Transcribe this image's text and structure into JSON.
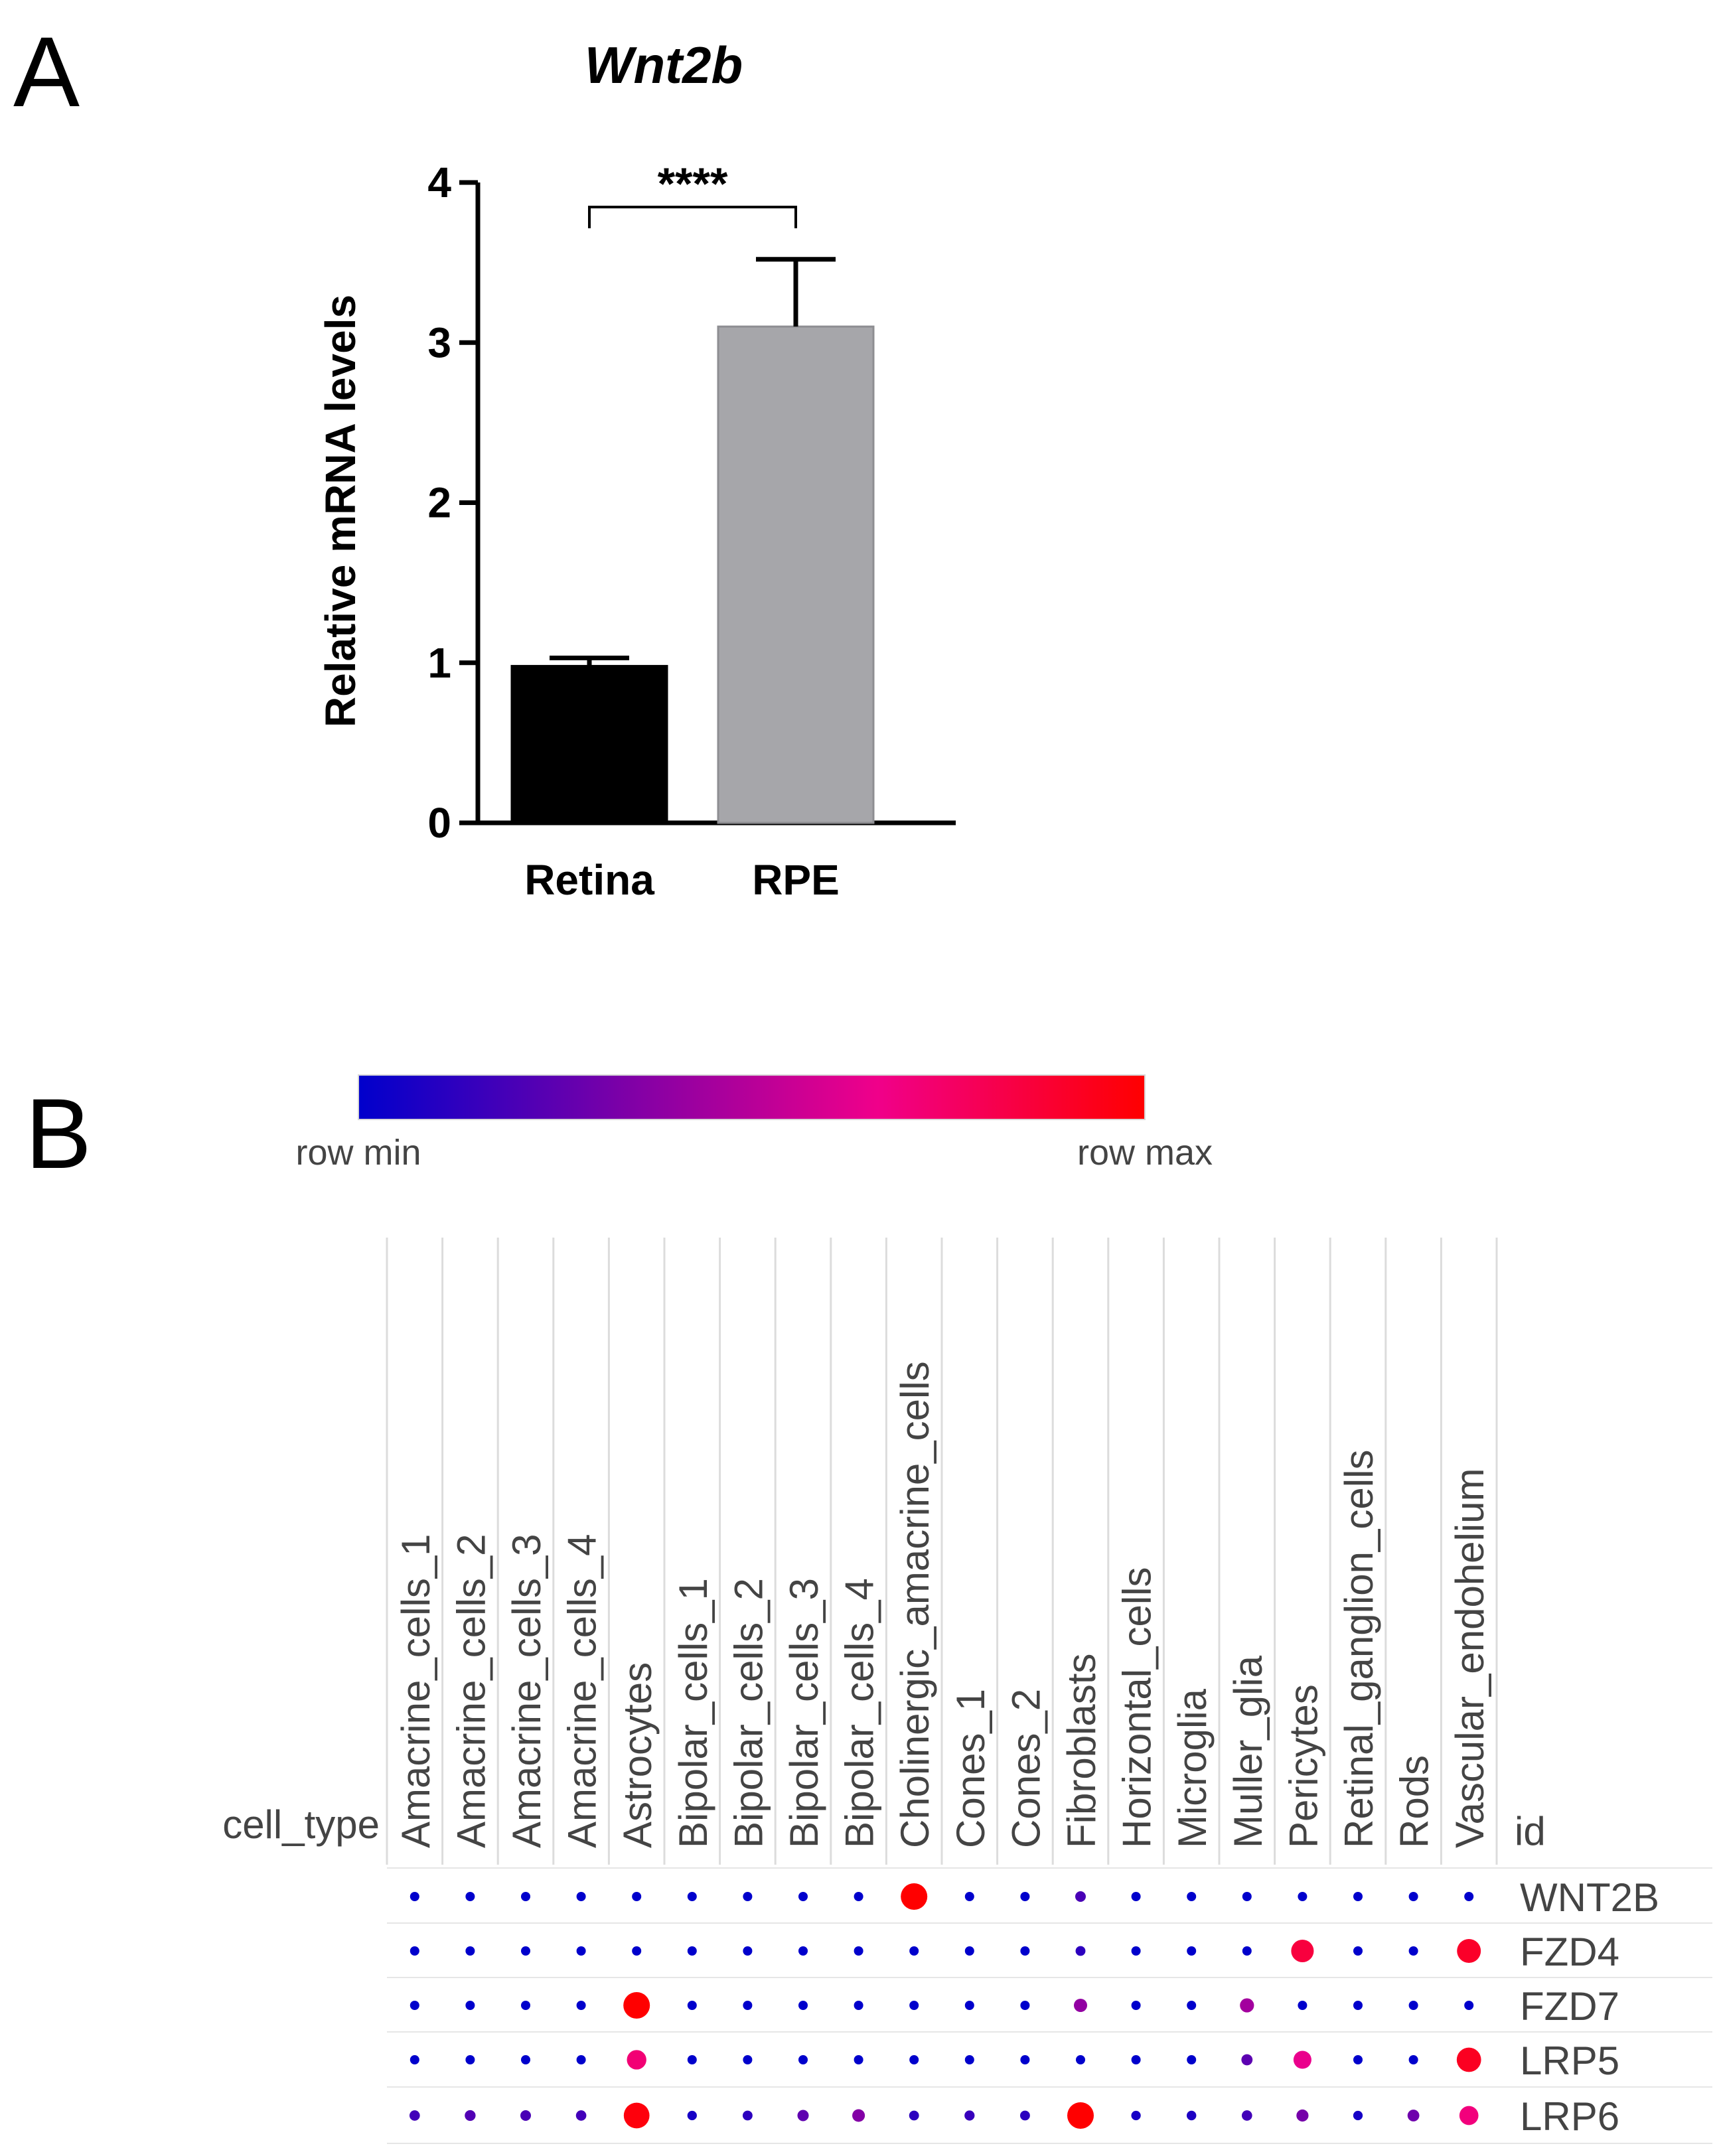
{
  "panel_a": {
    "letter": "A"
  },
  "panel_b": {
    "letter": "B"
  },
  "chart_data": [
    {
      "type": "bar",
      "title": "Wnt2b",
      "xlabel": "",
      "ylabel": "Relative mRNA levels",
      "categories": [
        "Retina",
        "RPE"
      ],
      "values": [
        0.98,
        3.1
      ],
      "errors": [
        0.05,
        0.42
      ],
      "colors": [
        "#000000",
        "#a6a6aa"
      ],
      "ylim": [
        0,
        4
      ],
      "yticks": [
        0,
        1,
        2,
        3,
        4
      ],
      "significance": {
        "label": "****",
        "between": [
          "Retina",
          "RPE"
        ]
      }
    },
    {
      "type": "heatmap",
      "style": "dot-plot",
      "row_label_header": "id",
      "col_label_header": "cell_type",
      "colorscale": {
        "min_label": "row min",
        "max_label": "row max",
        "colors": [
          "#0000cc",
          "#7a00a8",
          "#f0008a",
          "#ff0000"
        ]
      },
      "columns": [
        "Amacrine_cells_1",
        "Amacrine_cells_2",
        "Amacrine_cells_3",
        "Amacrine_cells_4",
        "Astrocytes",
        "Bipolar_cells_1",
        "Bipolar_cells_2",
        "Bipolar_cells_3",
        "Bipolar_cells_4",
        "Cholinergic_amacrine_cells",
        "Cones_1",
        "Cones_2",
        "Fibroblasts",
        "Horizontal_cells",
        "Microglia",
        "Muller_glia",
        "Pericytes",
        "Retinal_ganglion_cells",
        "Rods",
        "Vascular_endohelium"
      ],
      "rows": [
        "WNT2B",
        "FZD4",
        "FZD7",
        "LRP5",
        "LRP6"
      ],
      "values": [
        [
          0.0,
          0.0,
          0.0,
          0.0,
          0.0,
          0.0,
          0.0,
          0.0,
          0.0,
          1.0,
          0.0,
          0.0,
          0.2,
          0.0,
          0.0,
          0.0,
          0.0,
          0.0,
          0.0,
          0.0
        ],
        [
          0.0,
          0.0,
          0.0,
          0.0,
          0.0,
          0.0,
          0.0,
          0.0,
          0.0,
          0.0,
          0.0,
          0.0,
          0.12,
          0.0,
          0.0,
          0.0,
          0.85,
          0.0,
          0.0,
          0.9
        ],
        [
          0.0,
          0.0,
          0.0,
          0.0,
          1.0,
          0.0,
          0.0,
          0.0,
          0.0,
          0.0,
          0.0,
          0.0,
          0.4,
          0.0,
          0.0,
          0.45,
          0.0,
          0.0,
          0.0,
          0.0
        ],
        [
          0.0,
          0.0,
          0.0,
          0.0,
          0.72,
          0.0,
          0.0,
          0.0,
          0.0,
          0.0,
          0.0,
          0.0,
          0.0,
          0.0,
          0.0,
          0.25,
          0.65,
          0.0,
          0.0,
          0.92
        ],
        [
          0.18,
          0.22,
          0.2,
          0.18,
          0.97,
          0.06,
          0.12,
          0.26,
          0.36,
          0.12,
          0.15,
          0.12,
          1.0,
          0.06,
          0.08,
          0.18,
          0.32,
          0.06,
          0.3,
          0.7
        ]
      ]
    }
  ]
}
